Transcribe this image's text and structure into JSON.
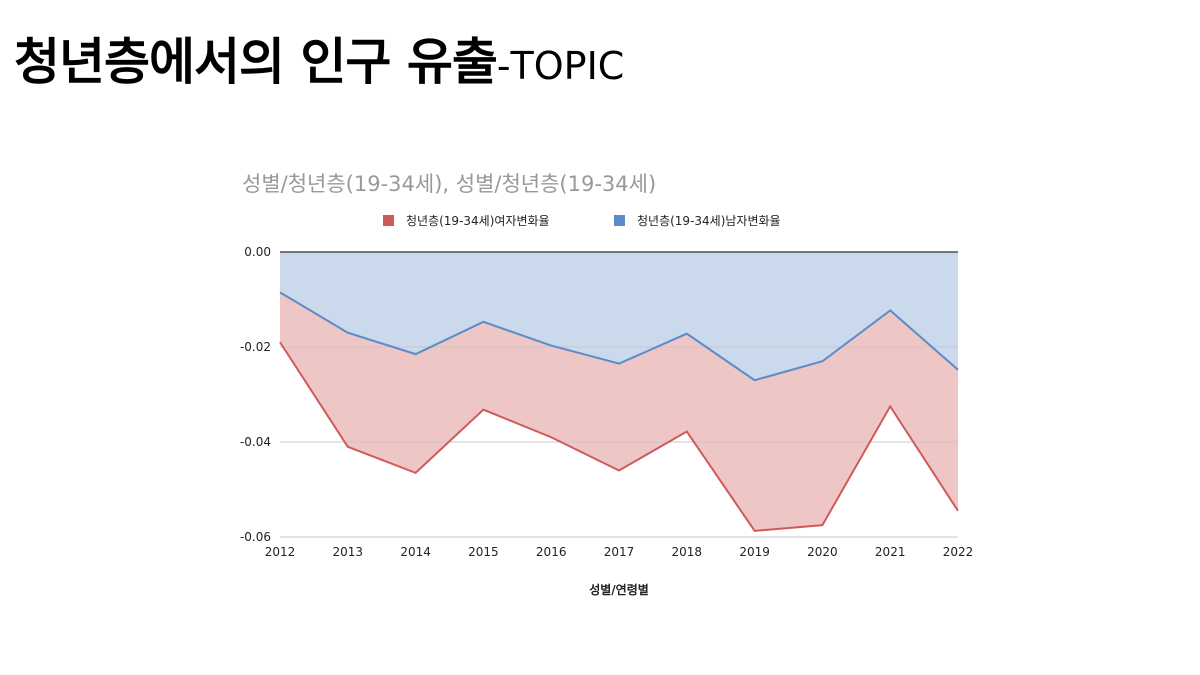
{
  "slide": {
    "title_main": "청년층에서의 인구 유출",
    "title_suffix": "-TOPIC"
  },
  "colors": {
    "female_line": "#cf5a5a",
    "female_fill": "#eec6c6",
    "male_line": "#5b8bc8",
    "male_fill": "#cad9ec",
    "zero_line": "#333333",
    "grid": "#c8c8c8"
  },
  "chart_data": {
    "type": "area",
    "title": "성별/청년층(19-34세), 성별/청년층(19-34세)",
    "xlabel": "성별/연령별",
    "ylabel": "",
    "legend_position": "top",
    "grid": true,
    "x": [
      "2012",
      "2013",
      "2014",
      "2015",
      "2016",
      "2017",
      "2018",
      "2019",
      "2020",
      "2021",
      "2022"
    ],
    "ylim": [
      -0.06,
      0
    ],
    "yticks": [
      0,
      -0.02,
      -0.04,
      -0.06
    ],
    "ytick_labels": [
      "0.00",
      "-0.02",
      "-0.04",
      "-0.06"
    ],
    "series": [
      {
        "name": "청년층(19-34세)여자변화율",
        "color": "#cf5a5a",
        "values": [
          -0.019,
          -0.041,
          -0.0465,
          -0.0332,
          -0.039,
          -0.046,
          -0.0378,
          -0.0587,
          -0.0575,
          -0.0325,
          -0.0545
        ]
      },
      {
        "name": "청년층(19-34세)남자변화율",
        "color": "#5b8bc8",
        "values": [
          -0.0085,
          -0.017,
          -0.0215,
          -0.0147,
          -0.0197,
          -0.0235,
          -0.0172,
          -0.027,
          -0.023,
          -0.0123,
          -0.0248
        ]
      }
    ]
  }
}
